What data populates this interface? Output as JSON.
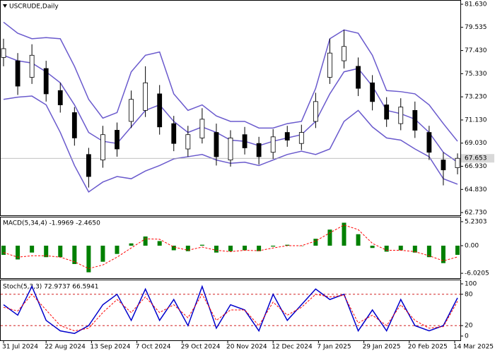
{
  "chart_data": [
    {
      "type": "candlestick",
      "title": "USCRUDE,Daily",
      "x": [
        0,
        5,
        10,
        15,
        20,
        25,
        30,
        35,
        40,
        45,
        50,
        55,
        60,
        65,
        70,
        75,
        80,
        85,
        90,
        95,
        100,
        105,
        110,
        115,
        120,
        125,
        130,
        135,
        140,
        145,
        150,
        155,
        160
      ],
      "open": [
        76.8,
        76.5,
        75.0,
        75.8,
        73.8,
        71.8,
        68.0,
        67.5,
        70.2,
        71.0,
        72.0,
        73.5,
        70.8,
        68.5,
        69.5,
        70.0,
        67.5,
        69.8,
        69.0,
        68.2,
        70.0,
        69.0,
        71.0,
        75.0,
        76.5,
        76.0,
        74.5,
        72.5,
        70.8,
        72.0,
        70.0,
        67.5,
        66.8
      ],
      "high": [
        78.5,
        77.2,
        78.0,
        76.5,
        74.5,
        72.3,
        68.6,
        70.6,
        70.9,
        73.8,
        76.0,
        74.3,
        71.5,
        70.6,
        72.2,
        70.8,
        70.2,
        70.5,
        69.6,
        70.3,
        70.6,
        70.7,
        73.6,
        78.5,
        79.3,
        76.8,
        75.2,
        73.2,
        73.1,
        72.8,
        70.6,
        68.2,
        68.1
      ],
      "low": [
        76.0,
        73.4,
        74.4,
        72.8,
        71.8,
        68.8,
        65.0,
        66.8,
        67.8,
        70.4,
        71.4,
        69.8,
        68.3,
        67.8,
        69.0,
        67.0,
        66.9,
        68.0,
        67.1,
        67.6,
        68.7,
        68.4,
        70.4,
        74.4,
        75.8,
        73.3,
        72.0,
        70.5,
        70.2,
        69.5,
        67.5,
        65.2,
        66.2
      ],
      "close": [
        77.6,
        74.2,
        77.0,
        73.5,
        72.5,
        69.5,
        66.0,
        69.8,
        68.5,
        73.0,
        74.5,
        70.5,
        69.0,
        69.8,
        71.2,
        67.8,
        69.5,
        68.6,
        67.8,
        69.6,
        69.3,
        70.0,
        72.8,
        77.2,
        77.8,
        74.0,
        72.8,
        71.2,
        72.3,
        70.2,
        68.2,
        66.6,
        67.653
      ],
      "color": "#000000",
      "up_color": "#ffffff",
      "down_color": "#000000",
      "series": [
        {
          "color": "#6a5acd",
          "values": [
            80.0,
            79.0,
            78.5,
            78.6,
            78.5,
            76.0,
            73.0,
            71.3,
            71.8,
            75.5,
            77.0,
            77.3,
            73.5,
            72.0,
            72.5,
            71.5,
            71.0,
            71.0,
            70.4,
            70.4,
            70.8,
            71.0,
            74.0,
            78.5,
            79.3,
            79.0,
            77.0,
            73.8,
            73.7,
            73.5,
            72.5,
            70.8,
            69.2
          ]
        },
        {
          "color": "#6a5acd",
          "values": [
            77.0,
            76.5,
            76.3,
            75.5,
            74.5,
            72.5,
            70.0,
            69.2,
            69.0,
            70.5,
            72.0,
            72.5,
            71.0,
            70.0,
            70.5,
            70.0,
            69.3,
            69.2,
            68.8,
            69.2,
            69.5,
            69.8,
            71.0,
            73.5,
            75.5,
            75.8,
            74.2,
            72.0,
            71.7,
            71.2,
            70.0,
            68.2,
            67.3
          ]
        },
        {
          "color": "#6a5acd",
          "values": [
            73.0,
            73.2,
            73.3,
            72.5,
            70.0,
            67.0,
            64.6,
            65.5,
            66.0,
            65.8,
            66.5,
            67.0,
            67.6,
            67.8,
            68.0,
            67.5,
            67.2,
            67.3,
            67.0,
            67.5,
            68.0,
            68.3,
            68.0,
            68.5,
            71.0,
            72.0,
            70.5,
            69.5,
            69.3,
            68.5,
            67.8,
            65.8,
            65.3
          ]
        }
      ],
      "last_price": {
        "value": 67.653,
        "label": "67.653"
      },
      "xlim": [
        -1,
        161
      ],
      "ylim": [
        62.48,
        81.95
      ],
      "yticks": [
        {
          "value": 62.73,
          "label": "62.730"
        },
        {
          "value": 64.83,
          "label": "64.830"
        },
        {
          "value": 66.93,
          "label": "66.930"
        },
        {
          "value": 69.03,
          "label": "69.030"
        },
        {
          "value": 71.13,
          "label": "71.130"
        },
        {
          "value": 73.23,
          "label": "73.230"
        },
        {
          "value": 75.33,
          "label": "75.330"
        },
        {
          "value": 77.43,
          "label": "77.430"
        },
        {
          "value": 79.535,
          "label": "79.535"
        },
        {
          "value": 81.63,
          "label": "81.630"
        }
      ]
    },
    {
      "type": "bar",
      "title": "MACD(5,34,4) -1.9969 -2.4650",
      "x": [
        0,
        5,
        10,
        15,
        20,
        25,
        30,
        35,
        40,
        45,
        50,
        55,
        60,
        65,
        70,
        75,
        80,
        85,
        90,
        95,
        100,
        105,
        110,
        115,
        120,
        125,
        130,
        135,
        140,
        145,
        150,
        155,
        160
      ],
      "values": [
        -2,
        -3.0,
        -1.5,
        -2.5,
        -2.5,
        -4.0,
        -5.8,
        -3.5,
        -1.8,
        0.5,
        2.0,
        1.0,
        -1.0,
        -1.2,
        0.2,
        -1.5,
        -1.2,
        -1.0,
        -1.2,
        -0.2,
        0.2,
        0.0,
        1.5,
        3.5,
        5.0,
        2.5,
        -0.5,
        -1.3,
        -1.0,
        -1.5,
        -2.5,
        -3.8,
        -1.9969
      ],
      "color": "#008000",
      "series": [
        {
          "color": "#ff0000",
          "values": [
            -1.5,
            -2.5,
            -2.2,
            -2.2,
            -2.5,
            -3.5,
            -5.0,
            -4.2,
            -2.5,
            -0.5,
            1.5,
            1.4,
            -0.3,
            -1.0,
            -0.3,
            -1.0,
            -1.3,
            -1.0,
            -1.1,
            -0.5,
            0.0,
            0.0,
            1.0,
            2.8,
            4.5,
            3.5,
            0.5,
            -1.0,
            -1.0,
            -1.3,
            -2.2,
            -3.3,
            -2.465
          ]
        }
      ],
      "xlim": [
        -1,
        161
      ],
      "ylim": [
        -7.08,
        6.15
      ],
      "yticks": [
        -6.0205,
        {
          "value": 0,
          "label": "0.00"
        },
        5.2303
      ]
    },
    {
      "type": "line",
      "title": "Stoch(5,3,3) 72.9737 66.5941",
      "x": [
        0,
        5,
        10,
        15,
        20,
        25,
        30,
        35,
        40,
        45,
        50,
        55,
        60,
        65,
        70,
        75,
        80,
        85,
        90,
        95,
        100,
        105,
        110,
        115,
        120,
        125,
        130,
        135,
        140,
        145,
        150,
        155,
        160
      ],
      "series": [
        {
          "color": "#0000cc",
          "values": [
            60,
            40,
            95,
            30,
            10,
            5,
            20,
            60,
            80,
            30,
            90,
            30,
            70,
            20,
            95,
            15,
            60,
            50,
            10,
            80,
            30,
            60,
            90,
            70,
            80,
            10,
            50,
            10,
            70,
            20,
            10,
            20,
            72.9737
          ]
        },
        {
          "color": "#ff0000",
          "values": [
            55,
            48,
            80,
            50,
            20,
            10,
            15,
            45,
            70,
            45,
            75,
            45,
            60,
            35,
            80,
            30,
            50,
            50,
            20,
            65,
            40,
            55,
            80,
            75,
            78,
            25,
            40,
            20,
            60,
            30,
            15,
            18,
            66.5941
          ]
        }
      ],
      "levels": [
        20,
        80
      ],
      "xlim": [
        -1,
        161
      ],
      "ylim": [
        -8.1,
        106.8
      ],
      "yticks": [
        0,
        20,
        80,
        100
      ],
      "xticks": [
        {
          "value": 0,
          "label": "31 Jul 2024"
        },
        {
          "value": 15,
          "label": "22 Aug 2024"
        },
        {
          "value": 31,
          "label": "13 Sep 2024"
        },
        {
          "value": 47,
          "label": "7 Oct 2024"
        },
        {
          "value": 63,
          "label": "29 Oct 2024"
        },
        {
          "value": 79,
          "label": "20 Nov 2024"
        },
        {
          "value": 95,
          "label": "12 Dec 2024"
        },
        {
          "value": 111,
          "label": "7 Jan 2025"
        },
        {
          "value": 127,
          "label": "29 Jan 2025"
        },
        {
          "value": 143,
          "label": "20 Feb 2025"
        },
        {
          "value": 159,
          "label": "14 Mar 2025"
        }
      ]
    }
  ]
}
